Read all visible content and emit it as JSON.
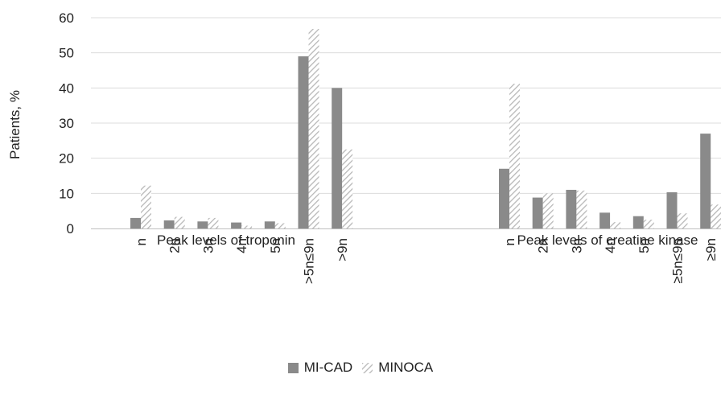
{
  "chart_data": {
    "type": "bar",
    "ylabel": "Patients, %",
    "ylim": [
      0,
      60
    ],
    "yticks": [
      0,
      10,
      20,
      30,
      40,
      50,
      60
    ],
    "grid": true,
    "legend_position": "bottom",
    "colors": {
      "MI-CAD": "#8a8a8a",
      "MINOCA_stripe": "#bdbdbd",
      "grid": "#dcdcdc",
      "axis": "#bfbfbf"
    },
    "series_names": [
      "MI-CAD",
      "MINOCA"
    ],
    "groups": [
      {
        "title": "Peak levels of troponin",
        "categories": [
          "n",
          "2n",
          "3n",
          "4n",
          "5n",
          ">5n≤9n",
          ">9n"
        ],
        "series": [
          {
            "name": "MI-CAD",
            "values": [
              3,
              2.3,
              2,
              1.7,
              2,
              49,
              40
            ]
          },
          {
            "name": "MINOCA",
            "values": [
              12.2,
              3.3,
              3,
              0.8,
              1.5,
              56.8,
              22.5
            ]
          }
        ]
      },
      {
        "title": "Peak levels of creatine kinase",
        "categories": [
          "n",
          "2n",
          "3n",
          "4n",
          "5n",
          "≥5n≤9n",
          "≥9n"
        ],
        "series": [
          {
            "name": "MI-CAD",
            "values": [
              17,
              8.8,
              11,
              4.5,
              3.5,
              10.3,
              27
            ]
          },
          {
            "name": "MINOCA",
            "values": [
              41.2,
              10,
              10.8,
              1.8,
              2.5,
              4.3,
              6.8
            ]
          }
        ]
      }
    ]
  }
}
